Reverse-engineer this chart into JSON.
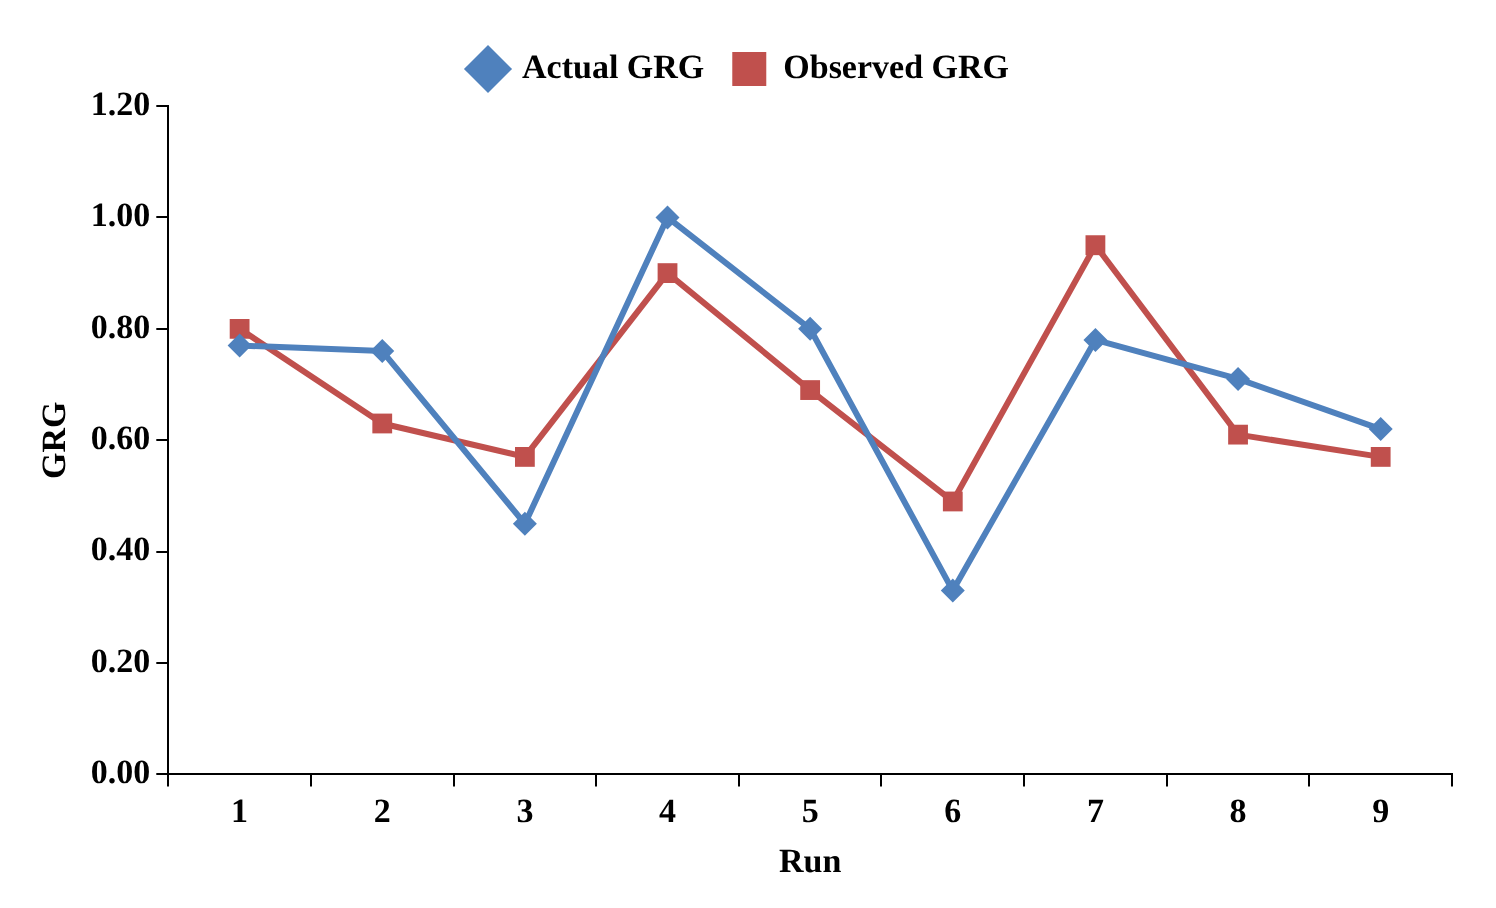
{
  "chart_data": {
    "type": "line",
    "xlabel": "Run",
    "ylabel": "GRG",
    "categories": [
      "1",
      "2",
      "3",
      "4",
      "5",
      "6",
      "7",
      "8",
      "9"
    ],
    "series": [
      {
        "name": "Actual GRG",
        "color": "#4f81bd",
        "marker": "diamond",
        "values": [
          0.77,
          0.76,
          0.45,
          1.0,
          0.8,
          0.33,
          0.78,
          0.71,
          0.62
        ]
      },
      {
        "name": "Observed GRG",
        "color": "#c0504d",
        "marker": "square",
        "values": [
          0.8,
          0.63,
          0.57,
          0.9,
          0.69,
          0.49,
          0.95,
          0.61,
          0.57
        ]
      }
    ],
    "ylim": [
      0,
      1.2
    ],
    "yticks": [
      {
        "value": 0,
        "label": "0.00"
      },
      {
        "value": 0.2,
        "label": "0.20"
      },
      {
        "value": 0.4,
        "label": "0.40"
      },
      {
        "value": 0.6,
        "label": "0.60"
      },
      {
        "value": 0.8,
        "label": "0.80"
      },
      {
        "value": 1.0,
        "label": "1.00"
      },
      {
        "value": 1.2,
        "label": "1.20"
      }
    ],
    "grid": false,
    "legend": "top",
    "line_style": "solid"
  }
}
